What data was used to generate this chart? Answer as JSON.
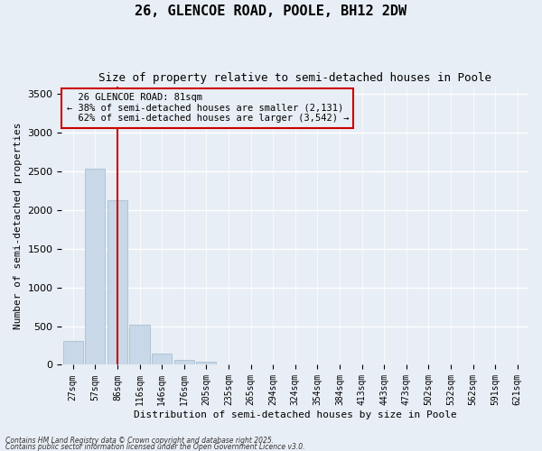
{
  "title": "26, GLENCOE ROAD, POOLE, BH12 2DW",
  "subtitle": "Size of property relative to semi-detached houses in Poole",
  "xlabel": "Distribution of semi-detached houses by size in Poole",
  "ylabel": "Number of semi-detached properties",
  "bar_color": "#c8d8e8",
  "bar_edge_color": "#a0b8cc",
  "bg_color": "#e8eef5",
  "grid_color": "#ffffff",
  "annotation_box_color": "#cc0000",
  "annotation_line_color": "#cc0000",
  "bins": [
    "27sqm",
    "57sqm",
    "86sqm",
    "116sqm",
    "146sqm",
    "176sqm",
    "205sqm",
    "235sqm",
    "265sqm",
    "294sqm",
    "324sqm",
    "354sqm",
    "384sqm",
    "413sqm",
    "443sqm",
    "473sqm",
    "502sqm",
    "532sqm",
    "562sqm",
    "591sqm",
    "621sqm"
  ],
  "values": [
    310,
    2530,
    2130,
    520,
    145,
    65,
    35,
    0,
    0,
    0,
    0,
    0,
    0,
    0,
    0,
    0,
    0,
    0,
    0,
    0,
    0
  ],
  "ylim": [
    0,
    3600
  ],
  "yticks": [
    0,
    500,
    1000,
    1500,
    2000,
    2500,
    3000,
    3500
  ],
  "property_label": "26 GLENCOE ROAD: 81sqm",
  "pct_smaller": 38,
  "pct_larger": 62,
  "count_smaller": 2131,
  "count_larger": 3542,
  "red_line_bin_index": 2,
  "footer1": "Contains HM Land Registry data © Crown copyright and database right 2025.",
  "footer2": "Contains public sector information licensed under the Open Government Licence v3.0."
}
